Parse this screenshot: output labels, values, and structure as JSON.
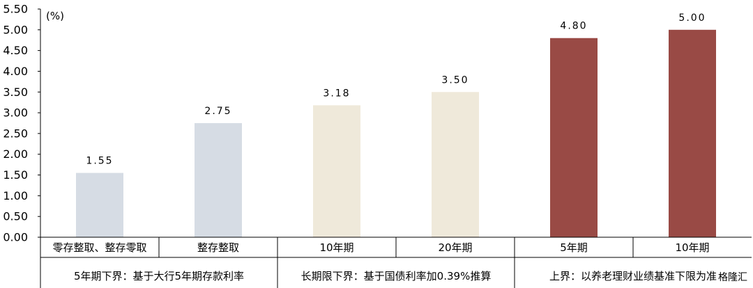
{
  "chart_data": {
    "type": "bar",
    "unit_label": "(%)",
    "ylim": [
      0,
      5.5
    ],
    "yticks": [
      "0.00",
      "0.50",
      "1.00",
      "1.50",
      "2.00",
      "2.50",
      "3.00",
      "3.50",
      "4.00",
      "4.50",
      "5.00",
      "5.50"
    ],
    "categories": [
      "零存整取、整存零取",
      "整存整取",
      "10年期",
      "20年期",
      "5年期",
      "10年期"
    ],
    "values": [
      1.55,
      2.75,
      3.18,
      3.5,
      4.8,
      5.0
    ],
    "value_labels": [
      "1.55",
      "2.75",
      "3.18",
      "3.50",
      "4.80",
      "5.00"
    ],
    "bar_colors": [
      "#d6dce4",
      "#d6dce4",
      "#efe9da",
      "#efe9da",
      "#994a45",
      "#994a45"
    ],
    "groups": [
      {
        "label": "5年期下界：基于大行5年期存款利率",
        "span": [
          0,
          1
        ]
      },
      {
        "label": "长期限下界：基于国债利率加0.39%推算",
        "span": [
          2,
          3
        ]
      },
      {
        "label": "上界：以养老理财业绩基准下限为准",
        "span": [
          4,
          5
        ]
      }
    ],
    "grid": false,
    "legend": "none"
  },
  "watermark": "格隆汇"
}
